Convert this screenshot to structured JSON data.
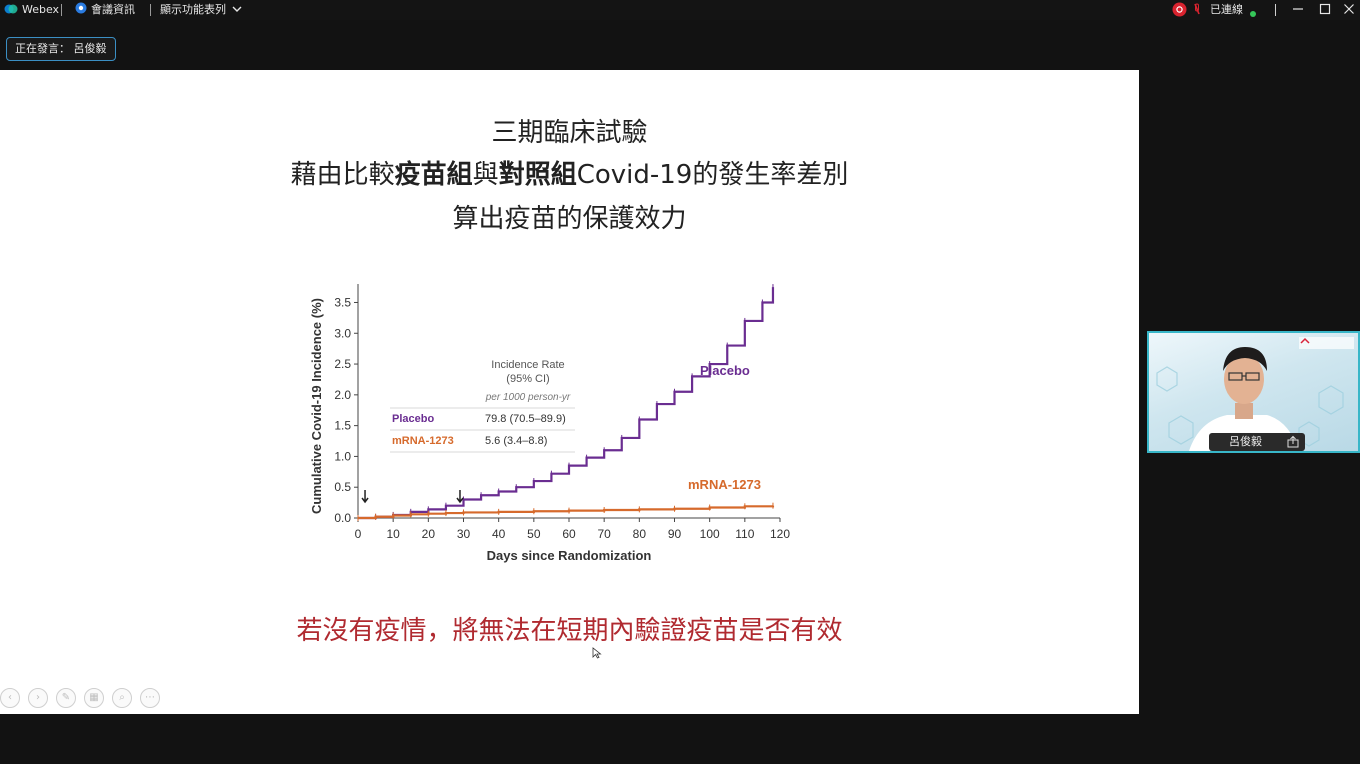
{
  "titlebar": {
    "app_name": "Webex",
    "meeting_info": "會議資訊",
    "show_menu": "顯示功能表列",
    "connection_status": "已連線",
    "accent_red": "#d9232f",
    "status_green": "#35c759"
  },
  "speaker_badge": {
    "text": "正在發言： 呂俊毅"
  },
  "slide": {
    "title_lines": {
      "line1": "三期臨床試驗",
      "line2_a": "藉由比較",
      "line2_b": "疫苗組",
      "line2_c": "與",
      "line2_d": "對照組",
      "line2_e": "Covid-19的發生率差別",
      "line3": "算出疫苗的保護效力"
    },
    "bottom_note": "若沒有疫情，將無法在短期內驗證疫苗是否有效"
  },
  "chart_data": {
    "type": "line",
    "ylabel": "Cumulative Covid-19 Incidence (%)",
    "xlabel": "Days since Randomization",
    "xlim": [
      0,
      120
    ],
    "ylim": [
      0,
      3.8
    ],
    "xticks": [
      "0",
      "10",
      "20",
      "30",
      "40",
      "50",
      "60",
      "70",
      "80",
      "90",
      "100",
      "110",
      "120"
    ],
    "yticks": [
      "0.0",
      "0.5",
      "1.0",
      "1.5",
      "2.0",
      "2.5",
      "3.0",
      "3.5"
    ],
    "series": [
      {
        "name": "Placebo",
        "color": "#6a2d91",
        "x": [
          0,
          5,
          10,
          15,
          20,
          25,
          30,
          35,
          40,
          45,
          50,
          55,
          60,
          65,
          70,
          75,
          80,
          85,
          90,
          95,
          100,
          105,
          110,
          115,
          118
        ],
        "y": [
          0,
          0.02,
          0.05,
          0.1,
          0.14,
          0.2,
          0.3,
          0.37,
          0.43,
          0.5,
          0.6,
          0.72,
          0.85,
          0.98,
          1.1,
          1.3,
          1.6,
          1.85,
          2.05,
          2.3,
          2.5,
          2.8,
          3.2,
          3.5,
          3.75
        ]
      },
      {
        "name": "mRNA-1273",
        "color": "#d66a2c",
        "x": [
          0,
          5,
          10,
          15,
          20,
          25,
          30,
          40,
          50,
          60,
          70,
          80,
          90,
          100,
          110,
          118
        ],
        "y": [
          0,
          0.02,
          0.04,
          0.06,
          0.07,
          0.08,
          0.09,
          0.1,
          0.11,
          0.12,
          0.13,
          0.14,
          0.15,
          0.17,
          0.19,
          0.2
        ]
      }
    ],
    "inset_table": {
      "header_line1": "Incidence Rate",
      "header_line2": "(95% CI)",
      "header_line3": "per 1000 person-yr",
      "rows": [
        {
          "label": "Placebo",
          "value": "79.8 (70.5–89.9)"
        },
        {
          "label": "mRNA-1273",
          "value": "5.6 (3.4–8.8)"
        }
      ]
    },
    "annotations": {
      "placebo_label": "Placebo",
      "mrna_label": "mRNA-1273",
      "arrows_at_days": [
        2,
        29
      ]
    },
    "grid": false
  },
  "video_tile": {
    "participant_name": "呂俊毅"
  },
  "icons": {
    "webex": "webex-logo-icon",
    "info": "info-icon",
    "chevron": "chevron-down-icon",
    "record": "record-icon",
    "share": "share-icon"
  }
}
